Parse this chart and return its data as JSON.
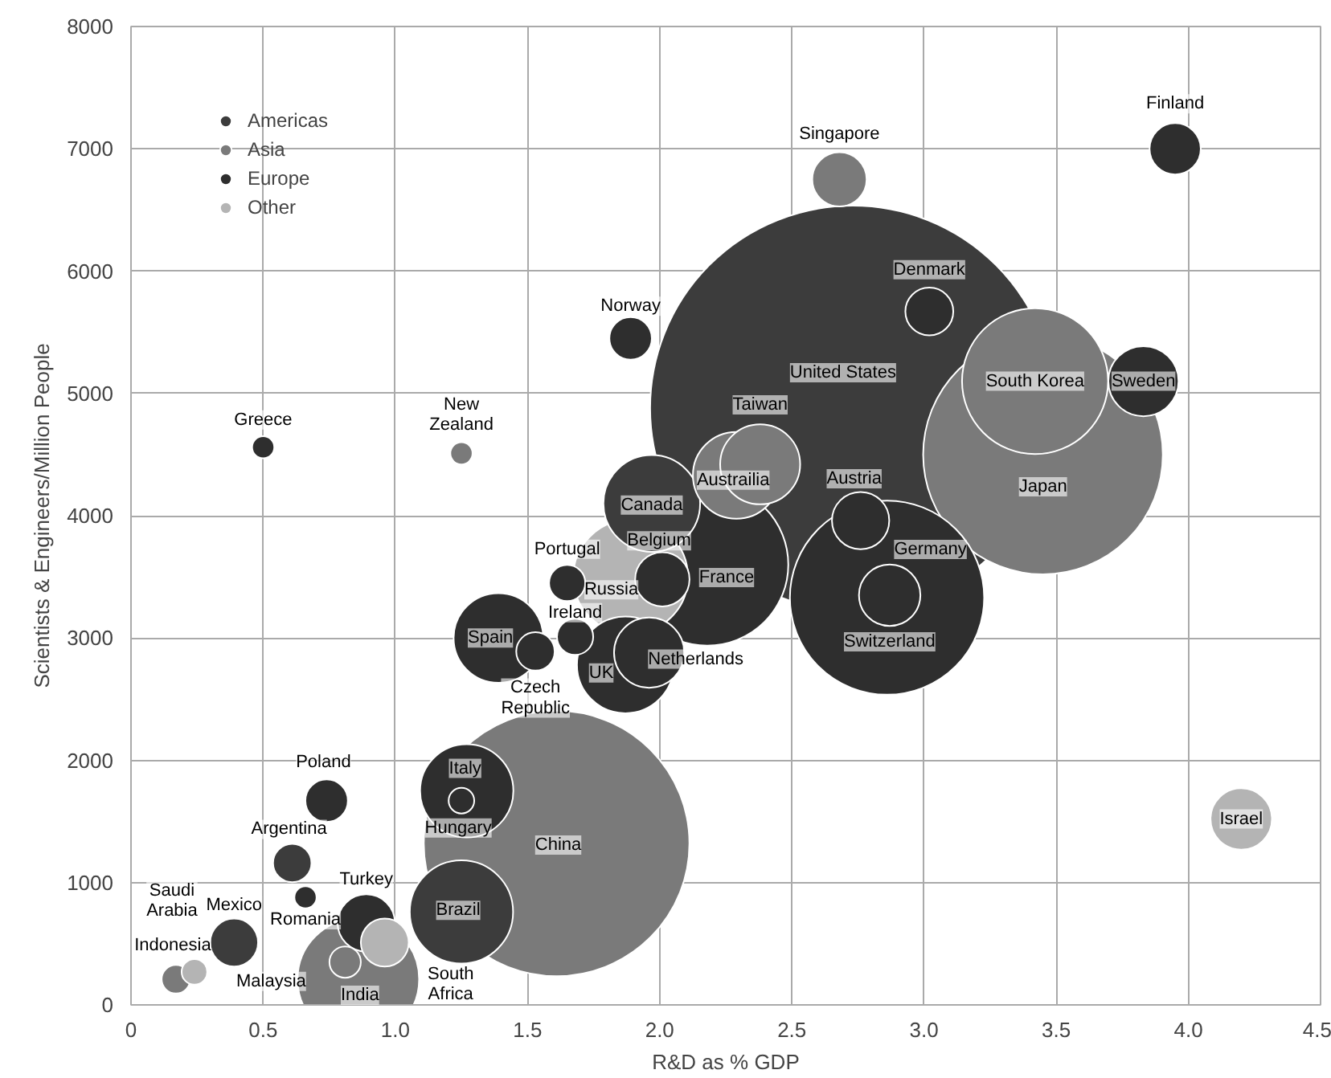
{
  "chart_data": {
    "type": "bubble",
    "xlabel": "R&D as % GDP",
    "ylabel": "Scientists & Engineers/Million People",
    "xlim": [
      0,
      4.5
    ],
    "ylim": [
      0,
      8000
    ],
    "xticks": [
      0,
      0.5,
      {
        "value": 1,
        "label": "1.0"
      },
      1.5,
      {
        "value": 2,
        "label": "2.0"
      },
      2.5,
      {
        "value": 3,
        "label": "3.0"
      },
      3.5,
      {
        "value": 4,
        "label": "4.0"
      },
      4.5
    ],
    "yticks": [
      0,
      1000,
      2000,
      3000,
      4000,
      5000,
      6000,
      7000,
      8000
    ],
    "grid": true,
    "legend": "top left",
    "marker": "circle",
    "series": [
      {
        "name": "Americas",
        "color": "#3c3c3c",
        "x": [
          2.73,
          1.97,
          1.25,
          0.61,
          0.39
        ],
        "values": [
          4880,
          4100,
          760,
          1160,
          510
        ],
        "sizes": [
          1,
          0.057,
          0.065,
          0.009,
          0.014
        ]
      },
      {
        "name": "Asia",
        "color": "#7a7a7a",
        "x": [
          3.45,
          3.42,
          1.61,
          2.38,
          2.29,
          2.68,
          0.86,
          0.81,
          0.17,
          1.25
        ],
        "values": [
          4500,
          5100,
          1320,
          4420,
          4330,
          6750,
          210,
          350,
          210,
          4510
        ],
        "sizes": [
          0.35,
          0.13,
          0.43,
          0.039,
          0.046,
          0.018,
          0.09,
          0.006,
          0.005,
          0.003
        ]
      },
      {
        "name": "Europe",
        "color": "#2e2e2e",
        "x": [
          2.86,
          2.87,
          2.18,
          2.01,
          1.96,
          1.87,
          1.65,
          1.68,
          1.39,
          1.53,
          1.27,
          1.25,
          0.74,
          0.66,
          0.89,
          0.5,
          1.89,
          3.95,
          3.02,
          3.83,
          2.76
        ],
        "values": [
          3330,
          3350,
          3600,
          3480,
          2880,
          2780,
          3450,
          3010,
          3000,
          2890,
          1750,
          1670,
          1670,
          880,
          670,
          4560,
          5450,
          7000,
          5670,
          5100,
          3960
        ],
        "sizes": [
          0.23,
          0.023,
          0.16,
          0.018,
          0.03,
          0.057,
          0.008,
          0.008,
          0.049,
          0.009,
          0.053,
          0.004,
          0.011,
          0.003,
          0.02,
          0.003,
          0.011,
          0.016,
          0.014,
          0.03,
          0.02
        ]
      },
      {
        "name": "Other",
        "color": "#b4b4b4",
        "x": [
          1.89,
          0.96,
          4.2,
          0.24
        ],
        "values": [
          3500,
          510,
          1520,
          270
        ],
        "sizes": [
          0.08,
          0.014,
          0.023,
          0.004
        ]
      }
    ],
    "annotations": [
      {
        "text": "Greece",
        "x": 0.5,
        "y": 4560
      },
      {
        "text": "New\nZealand",
        "x": 1.25,
        "y": 4510
      },
      {
        "text": "Norway",
        "x": 1.89,
        "y": 5450
      },
      {
        "text": "Singapore",
        "x": 2.68,
        "y": 6750
      },
      {
        "text": "Finland",
        "x": 3.95,
        "y": 7000
      },
      {
        "text": "Denmark",
        "x": 3.02,
        "y": 5670
      },
      {
        "text": "United States",
        "x": 2.73,
        "y": 4880
      },
      {
        "text": "South Korea",
        "x": 3.42,
        "y": 5100
      },
      {
        "text": "Sweden",
        "x": 3.83,
        "y": 5100
      },
      {
        "text": "Taiwan",
        "x": 2.38,
        "y": 4420
      },
      {
        "text": "Austrailia",
        "x": 2.29,
        "y": 4330
      },
      {
        "text": "Austria",
        "x": 2.76,
        "y": 3960
      },
      {
        "text": "Japan",
        "x": 3.45,
        "y": 4500
      },
      {
        "text": "Canada",
        "x": 1.97,
        "y": 4100
      },
      {
        "text": "Germany",
        "x": 2.86,
        "y": 3330
      },
      {
        "text": "Belgium",
        "x": 2.01,
        "y": 3480
      },
      {
        "text": "France",
        "x": 2.18,
        "y": 3600
      },
      {
        "text": "Switzerland",
        "x": 2.87,
        "y": 3350
      },
      {
        "text": "Netherlands",
        "x": 1.96,
        "y": 2880
      },
      {
        "text": "UK",
        "x": 1.87,
        "y": 2780
      },
      {
        "text": "Russia",
        "x": 1.89,
        "y": 3500
      },
      {
        "text": "Portugal",
        "x": 1.65,
        "y": 3450
      },
      {
        "text": "Ireland",
        "x": 1.68,
        "y": 3010
      },
      {
        "text": "Spain",
        "x": 1.39,
        "y": 3000
      },
      {
        "text": "Czech\nRepublic",
        "x": 1.53,
        "y": 2890
      },
      {
        "text": "Italy",
        "x": 1.27,
        "y": 1750
      },
      {
        "text": "Hungary",
        "x": 1.25,
        "y": 1670
      },
      {
        "text": "China",
        "x": 1.61,
        "y": 1320
      },
      {
        "text": "Brazil",
        "x": 1.25,
        "y": 760
      },
      {
        "text": "Poland",
        "x": 0.74,
        "y": 1670
      },
      {
        "text": "Argentina",
        "x": 0.61,
        "y": 1160
      },
      {
        "text": "Romania",
        "x": 0.66,
        "y": 880
      },
      {
        "text": "Turkey",
        "x": 0.89,
        "y": 670
      },
      {
        "text": "Mexico",
        "x": 0.39,
        "y": 510
      },
      {
        "text": "Saudi\nArabia",
        "x": 0.24,
        "y": 270
      },
      {
        "text": "Indonesia",
        "x": 0.17,
        "y": 210
      },
      {
        "text": "Malaysia",
        "x": 0.81,
        "y": 350
      },
      {
        "text": "India",
        "x": 0.86,
        "y": 210
      },
      {
        "text": "South\nAfrica",
        "x": 0.96,
        "y": 510
      },
      {
        "text": "Israel",
        "x": 4.2,
        "y": 1520
      }
    ]
  }
}
